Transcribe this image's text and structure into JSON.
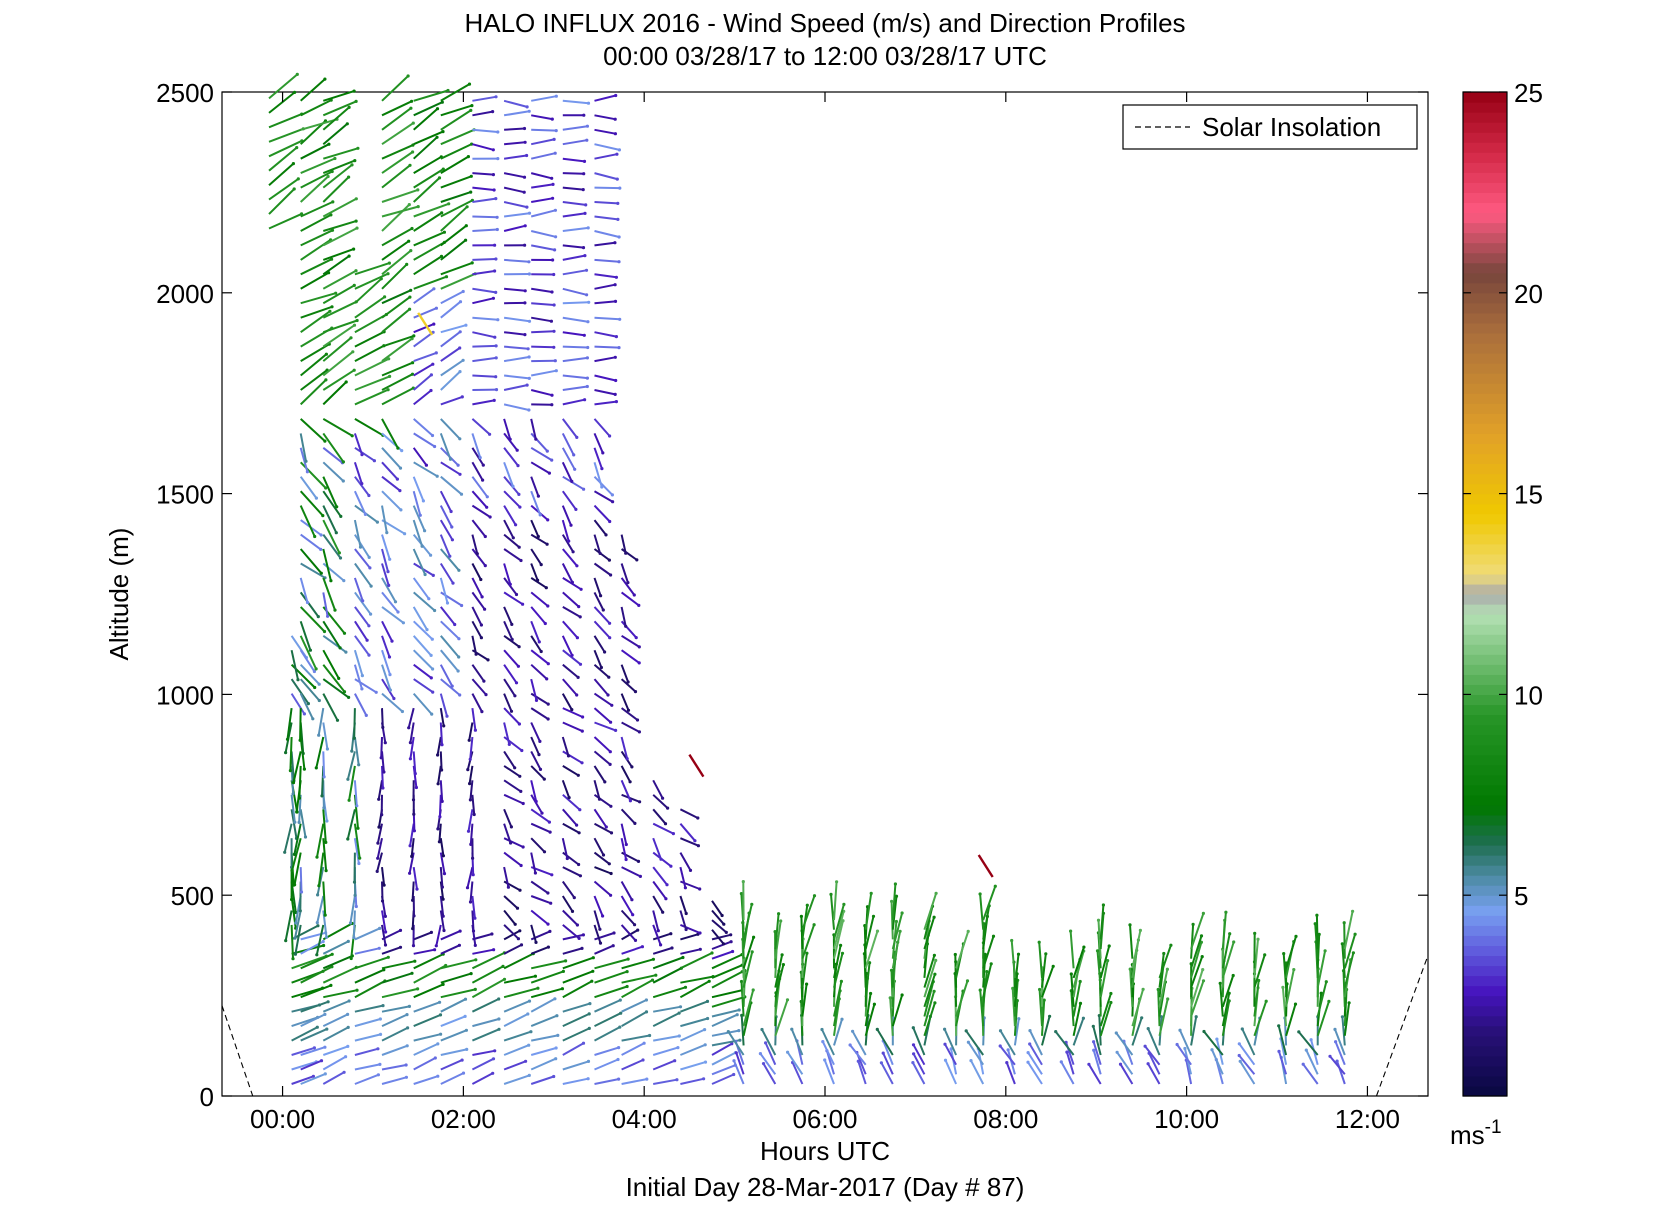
{
  "chart_data": {
    "type": "wind-barb-profile",
    "title": "HALO INFLUX 2016 - Wind Speed (m/s) and Direction Profiles",
    "subtitle": "00:00 03/28/17 to 12:00 03/28/17  UTC",
    "xlabel": "Hours UTC",
    "xlabel2": "Initial Day 28-Mar-2017 (Day # 87)",
    "ylabel": "Altitude (m)",
    "xlim_hours": [
      -0.67,
      12.67
    ],
    "ylim": [
      0,
      2500
    ],
    "x_ticks": [
      {
        "hour": 0,
        "label": "00:00"
      },
      {
        "hour": 2,
        "label": "02:00"
      },
      {
        "hour": 4,
        "label": "04:00"
      },
      {
        "hour": 6,
        "label": "06:00"
      },
      {
        "hour": 8,
        "label": "08:00"
      },
      {
        "hour": 10,
        "label": "10:00"
      },
      {
        "hour": 12,
        "label": "12:00"
      }
    ],
    "y_ticks": [
      {
        "value": 0,
        "label": "0"
      },
      {
        "value": 500,
        "label": "500"
      },
      {
        "value": 1000,
        "label": "1000"
      },
      {
        "value": 1500,
        "label": "1500"
      },
      {
        "value": 2000,
        "label": "2000"
      },
      {
        "value": 2500,
        "label": "2500"
      }
    ],
    "legend": {
      "label": "Solar Insolation",
      "placement": "top-right"
    },
    "colorbar": {
      "unit": "ms",
      "unit_exp": "-1",
      "range": [
        0,
        25
      ],
      "ticks": [
        {
          "value": 5,
          "label": "5"
        },
        {
          "value": 10,
          "label": "10"
        },
        {
          "value": 15,
          "label": "15"
        },
        {
          "value": 20,
          "label": "20"
        },
        {
          "value": 25,
          "label": "25"
        }
      ]
    },
    "solar_insolation": [
      {
        "hour": -0.67,
        "alt": 225
      },
      {
        "hour": -0.33,
        "alt": 0
      },
      {
        "hour": 12.1,
        "alt": 0
      },
      {
        "hour": 12.67,
        "alt": 350
      }
    ],
    "profiles": [
      {
        "h": -0.15,
        "top": 2490,
        "bottom": 2160
      },
      {
        "h": 0.1,
        "top": 1150,
        "bottom": 30
      },
      {
        "h": 0.2,
        "top": 2490,
        "bottom": 30
      },
      {
        "h": 0.45,
        "top": 2490,
        "bottom": 30
      },
      {
        "h": 0.8,
        "top": 2080,
        "bottom": 30
      },
      {
        "h": 1.1,
        "top": 2490,
        "bottom": 30
      },
      {
        "h": 1.45,
        "top": 2490,
        "bottom": 30
      },
      {
        "h": 1.75,
        "top": 2490,
        "bottom": 30
      },
      {
        "h": 2.1,
        "top": 2490,
        "bottom": 30
      },
      {
        "h": 2.45,
        "top": 2490,
        "bottom": 30
      },
      {
        "h": 2.75,
        "top": 2490,
        "bottom": 30
      },
      {
        "h": 3.1,
        "top": 2490,
        "bottom": 30
      },
      {
        "h": 3.45,
        "top": 2490,
        "bottom": 30
      },
      {
        "h": 3.75,
        "top": 1420,
        "bottom": 30
      },
      {
        "h": 4.1,
        "top": 820,
        "bottom": 30
      },
      {
        "h": 4.4,
        "top": 720,
        "bottom": 30
      },
      {
        "h": 4.75,
        "top": 500,
        "bottom": 30
      },
      {
        "h": 5.1,
        "top": 440,
        "bottom": 30
      },
      {
        "h": 5.45,
        "top": 380,
        "bottom": 30
      },
      {
        "h": 5.75,
        "top": 430,
        "bottom": 30
      },
      {
        "h": 6.1,
        "top": 450,
        "bottom": 30
      },
      {
        "h": 6.45,
        "top": 420,
        "bottom": 30
      },
      {
        "h": 6.75,
        "top": 450,
        "bottom": 30
      },
      {
        "h": 7.1,
        "top": 430,
        "bottom": 30
      },
      {
        "h": 7.45,
        "top": 320,
        "bottom": 30
      },
      {
        "h": 7.75,
        "top": 450,
        "bottom": 30
      },
      {
        "h": 8.1,
        "top": 300,
        "bottom": 30
      },
      {
        "h": 8.4,
        "top": 300,
        "bottom": 30
      },
      {
        "h": 8.75,
        "top": 330,
        "bottom": 30
      },
      {
        "h": 9.05,
        "top": 400,
        "bottom": 30
      },
      {
        "h": 9.4,
        "top": 360,
        "bottom": 30
      },
      {
        "h": 9.7,
        "top": 300,
        "bottom": 30
      },
      {
        "h": 10.05,
        "top": 370,
        "bottom": 30
      },
      {
        "h": 10.4,
        "top": 370,
        "bottom": 30
      },
      {
        "h": 10.75,
        "top": 330,
        "bottom": 30
      },
      {
        "h": 11.1,
        "top": 330,
        "bottom": 30
      },
      {
        "h": 11.45,
        "top": 370,
        "bottom": 30
      },
      {
        "h": 11.75,
        "top": 370,
        "bottom": 30
      }
    ],
    "outliers": [
      {
        "h": 4.5,
        "alt": 850,
        "speed": 25
      },
      {
        "h": 7.7,
        "alt": 600,
        "speed": 25
      },
      {
        "h": 1.5,
        "alt": 1950,
        "speed": 14
      }
    ]
  }
}
